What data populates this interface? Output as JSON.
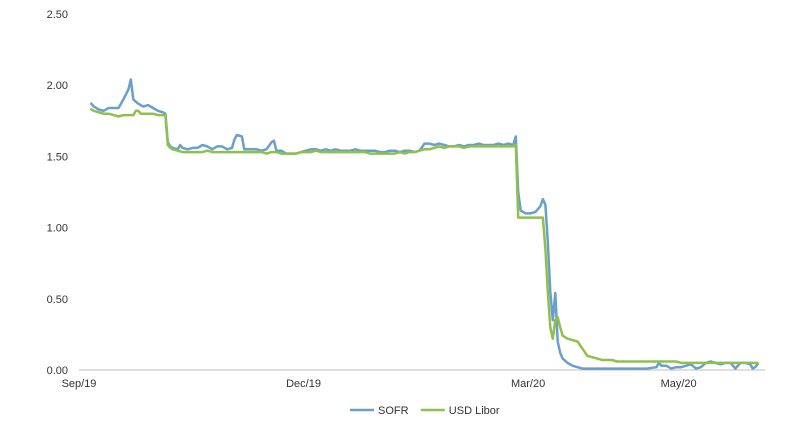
{
  "chart_data": {
    "type": "line",
    "title": "",
    "xlabel": "",
    "ylabel": "",
    "ylim": [
      0,
      2.5
    ],
    "y_ticks": [
      "0.00",
      "0.50",
      "1.00",
      "1.50",
      "2.00",
      "2.50"
    ],
    "x_ticks": [
      {
        "label": "Sep/19",
        "day": 0
      },
      {
        "label": "Dec/19",
        "day": 91
      },
      {
        "label": "Mar/20",
        "day": 182
      },
      {
        "label": "May/20",
        "day": 243
      }
    ],
    "x_note": "x values are days after 2019-09-01",
    "grid": false,
    "legend_position": "bottom",
    "series": [
      {
        "name": "SOFR",
        "color": "#6a9fcb",
        "points": [
          [
            5,
            1.87
          ],
          [
            6,
            1.85
          ],
          [
            8,
            1.83
          ],
          [
            10,
            1.82
          ],
          [
            12,
            1.84
          ],
          [
            14,
            1.84
          ],
          [
            16,
            1.84
          ],
          [
            18,
            1.9
          ],
          [
            20,
            1.97
          ],
          [
            21,
            2.04
          ],
          [
            22,
            1.9
          ],
          [
            24,
            1.87
          ],
          [
            26,
            1.85
          ],
          [
            28,
            1.86
          ],
          [
            30,
            1.84
          ],
          [
            32,
            1.82
          ],
          [
            34,
            1.81
          ],
          [
            35,
            1.8
          ],
          [
            36,
            1.6
          ],
          [
            37,
            1.57
          ],
          [
            38,
            1.56
          ],
          [
            40,
            1.55
          ],
          [
            41,
            1.58
          ],
          [
            42,
            1.56
          ],
          [
            44,
            1.55
          ],
          [
            46,
            1.56
          ],
          [
            48,
            1.56
          ],
          [
            50,
            1.58
          ],
          [
            52,
            1.57
          ],
          [
            54,
            1.55
          ],
          [
            56,
            1.57
          ],
          [
            58,
            1.57
          ],
          [
            60,
            1.55
          ],
          [
            62,
            1.56
          ],
          [
            63,
            1.62
          ],
          [
            64,
            1.65
          ],
          [
            66,
            1.64
          ],
          [
            67,
            1.55
          ],
          [
            68,
            1.55
          ],
          [
            70,
            1.55
          ],
          [
            72,
            1.55
          ],
          [
            74,
            1.54
          ],
          [
            76,
            1.55
          ],
          [
            78,
            1.6
          ],
          [
            79,
            1.61
          ],
          [
            80,
            1.54
          ],
          [
            82,
            1.54
          ],
          [
            84,
            1.52
          ],
          [
            86,
            1.52
          ],
          [
            88,
            1.52
          ],
          [
            90,
            1.53
          ],
          [
            92,
            1.54
          ],
          [
            94,
            1.55
          ],
          [
            96,
            1.55
          ],
          [
            98,
            1.54
          ],
          [
            100,
            1.55
          ],
          [
            102,
            1.54
          ],
          [
            104,
            1.55
          ],
          [
            106,
            1.54
          ],
          [
            108,
            1.54
          ],
          [
            110,
            1.54
          ],
          [
            112,
            1.55
          ],
          [
            114,
            1.54
          ],
          [
            116,
            1.54
          ],
          [
            118,
            1.54
          ],
          [
            120,
            1.54
          ],
          [
            122,
            1.53
          ],
          [
            124,
            1.53
          ],
          [
            126,
            1.54
          ],
          [
            128,
            1.54
          ],
          [
            130,
            1.53
          ],
          [
            132,
            1.54
          ],
          [
            134,
            1.54
          ],
          [
            136,
            1.53
          ],
          [
            138,
            1.54
          ],
          [
            140,
            1.59
          ],
          [
            142,
            1.59
          ],
          [
            144,
            1.58
          ],
          [
            146,
            1.59
          ],
          [
            148,
            1.58
          ],
          [
            150,
            1.57
          ],
          [
            152,
            1.57
          ],
          [
            154,
            1.58
          ],
          [
            156,
            1.57
          ],
          [
            158,
            1.58
          ],
          [
            160,
            1.58
          ],
          [
            162,
            1.59
          ],
          [
            164,
            1.58
          ],
          [
            166,
            1.58
          ],
          [
            168,
            1.58
          ],
          [
            170,
            1.59
          ],
          [
            172,
            1.58
          ],
          [
            174,
            1.59
          ],
          [
            176,
            1.58
          ],
          [
            177,
            1.64
          ],
          [
            178,
            1.25
          ],
          [
            179,
            1.12
          ],
          [
            181,
            1.1
          ],
          [
            183,
            1.1
          ],
          [
            185,
            1.11
          ],
          [
            187,
            1.15
          ],
          [
            188,
            1.2
          ],
          [
            189,
            1.16
          ],
          [
            190,
            0.9
          ],
          [
            191,
            0.55
          ],
          [
            192,
            0.35
          ],
          [
            193,
            0.54
          ],
          [
            194,
            0.2
          ],
          [
            195,
            0.12
          ],
          [
            196,
            0.08
          ],
          [
            198,
            0.05
          ],
          [
            200,
            0.03
          ],
          [
            202,
            0.02
          ],
          [
            204,
            0.01
          ],
          [
            210,
            0.01
          ],
          [
            215,
            0.01
          ],
          [
            220,
            0.01
          ],
          [
            225,
            0.01
          ],
          [
            230,
            0.01
          ],
          [
            234,
            0.02
          ],
          [
            235,
            0.05
          ],
          [
            236,
            0.03
          ],
          [
            238,
            0.03
          ],
          [
            240,
            0.01
          ],
          [
            242,
            0.02
          ],
          [
            244,
            0.02
          ],
          [
            246,
            0.03
          ],
          [
            248,
            0.04
          ],
          [
            250,
            0.01
          ],
          [
            252,
            0.02
          ],
          [
            254,
            0.05
          ],
          [
            256,
            0.06
          ],
          [
            258,
            0.05
          ],
          [
            260,
            0.04
          ],
          [
            262,
            0.05
          ],
          [
            264,
            0.05
          ],
          [
            266,
            0.01
          ],
          [
            268,
            0.05
          ],
          [
            270,
            0.05
          ],
          [
            272,
            0.04
          ],
          [
            273,
            0.01
          ],
          [
            274,
            0.02
          ],
          [
            275,
            0.04
          ]
        ]
      },
      {
        "name": "USD Libor",
        "color": "#8ec04b",
        "points": [
          [
            5,
            1.83
          ],
          [
            6,
            1.82
          ],
          [
            8,
            1.81
          ],
          [
            10,
            1.8
          ],
          [
            12,
            1.8
          ],
          [
            14,
            1.79
          ],
          [
            16,
            1.78
          ],
          [
            18,
            1.79
          ],
          [
            20,
            1.79
          ],
          [
            22,
            1.79
          ],
          [
            23,
            1.82
          ],
          [
            24,
            1.82
          ],
          [
            25,
            1.8
          ],
          [
            28,
            1.8
          ],
          [
            30,
            1.8
          ],
          [
            32,
            1.79
          ],
          [
            34,
            1.79
          ],
          [
            35,
            1.79
          ],
          [
            36,
            1.58
          ],
          [
            37,
            1.56
          ],
          [
            38,
            1.55
          ],
          [
            40,
            1.54
          ],
          [
            42,
            1.53
          ],
          [
            44,
            1.53
          ],
          [
            46,
            1.53
          ],
          [
            48,
            1.53
          ],
          [
            50,
            1.53
          ],
          [
            52,
            1.54
          ],
          [
            54,
            1.53
          ],
          [
            56,
            1.53
          ],
          [
            58,
            1.53
          ],
          [
            60,
            1.53
          ],
          [
            62,
            1.53
          ],
          [
            64,
            1.53
          ],
          [
            66,
            1.53
          ],
          [
            68,
            1.53
          ],
          [
            70,
            1.53
          ],
          [
            72,
            1.53
          ],
          [
            74,
            1.53
          ],
          [
            76,
            1.52
          ],
          [
            78,
            1.53
          ],
          [
            80,
            1.53
          ],
          [
            82,
            1.52
          ],
          [
            84,
            1.52
          ],
          [
            86,
            1.52
          ],
          [
            88,
            1.52
          ],
          [
            90,
            1.53
          ],
          [
            92,
            1.53
          ],
          [
            94,
            1.53
          ],
          [
            96,
            1.54
          ],
          [
            98,
            1.53
          ],
          [
            100,
            1.53
          ],
          [
            102,
            1.53
          ],
          [
            104,
            1.53
          ],
          [
            106,
            1.53
          ],
          [
            108,
            1.53
          ],
          [
            110,
            1.53
          ],
          [
            112,
            1.53
          ],
          [
            114,
            1.53
          ],
          [
            116,
            1.53
          ],
          [
            118,
            1.52
          ],
          [
            120,
            1.52
          ],
          [
            122,
            1.52
          ],
          [
            124,
            1.52
          ],
          [
            126,
            1.52
          ],
          [
            128,
            1.52
          ],
          [
            130,
            1.53
          ],
          [
            132,
            1.52
          ],
          [
            134,
            1.53
          ],
          [
            136,
            1.53
          ],
          [
            138,
            1.54
          ],
          [
            140,
            1.55
          ],
          [
            142,
            1.55
          ],
          [
            144,
            1.56
          ],
          [
            146,
            1.57
          ],
          [
            148,
            1.56
          ],
          [
            150,
            1.57
          ],
          [
            152,
            1.57
          ],
          [
            154,
            1.57
          ],
          [
            156,
            1.56
          ],
          [
            158,
            1.57
          ],
          [
            160,
            1.57
          ],
          [
            162,
            1.57
          ],
          [
            164,
            1.57
          ],
          [
            166,
            1.57
          ],
          [
            168,
            1.57
          ],
          [
            170,
            1.57
          ],
          [
            172,
            1.57
          ],
          [
            174,
            1.57
          ],
          [
            176,
            1.57
          ],
          [
            177,
            1.58
          ],
          [
            178,
            1.07
          ],
          [
            180,
            1.07
          ],
          [
            182,
            1.07
          ],
          [
            184,
            1.07
          ],
          [
            186,
            1.07
          ],
          [
            188,
            1.07
          ],
          [
            189,
            0.85
          ],
          [
            190,
            0.55
          ],
          [
            191,
            0.3
          ],
          [
            192,
            0.22
          ],
          [
            193,
            0.35
          ],
          [
            194,
            0.37
          ],
          [
            195,
            0.3
          ],
          [
            196,
            0.24
          ],
          [
            198,
            0.22
          ],
          [
            200,
            0.21
          ],
          [
            202,
            0.2
          ],
          [
            204,
            0.15
          ],
          [
            206,
            0.1
          ],
          [
            208,
            0.09
          ],
          [
            210,
            0.08
          ],
          [
            212,
            0.07
          ],
          [
            214,
            0.07
          ],
          [
            216,
            0.07
          ],
          [
            218,
            0.06
          ],
          [
            220,
            0.06
          ],
          [
            222,
            0.06
          ],
          [
            224,
            0.06
          ],
          [
            226,
            0.06
          ],
          [
            228,
            0.06
          ],
          [
            230,
            0.06
          ],
          [
            232,
            0.06
          ],
          [
            234,
            0.06
          ],
          [
            236,
            0.06
          ],
          [
            238,
            0.06
          ],
          [
            240,
            0.06
          ],
          [
            242,
            0.06
          ],
          [
            244,
            0.05
          ],
          [
            246,
            0.05
          ],
          [
            248,
            0.05
          ],
          [
            250,
            0.05
          ],
          [
            252,
            0.05
          ],
          [
            254,
            0.05
          ],
          [
            256,
            0.05
          ],
          [
            258,
            0.05
          ],
          [
            260,
            0.05
          ],
          [
            262,
            0.05
          ],
          [
            264,
            0.05
          ],
          [
            266,
            0.05
          ],
          [
            268,
            0.05
          ],
          [
            270,
            0.05
          ],
          [
            272,
            0.05
          ],
          [
            275,
            0.05
          ]
        ]
      }
    ]
  }
}
